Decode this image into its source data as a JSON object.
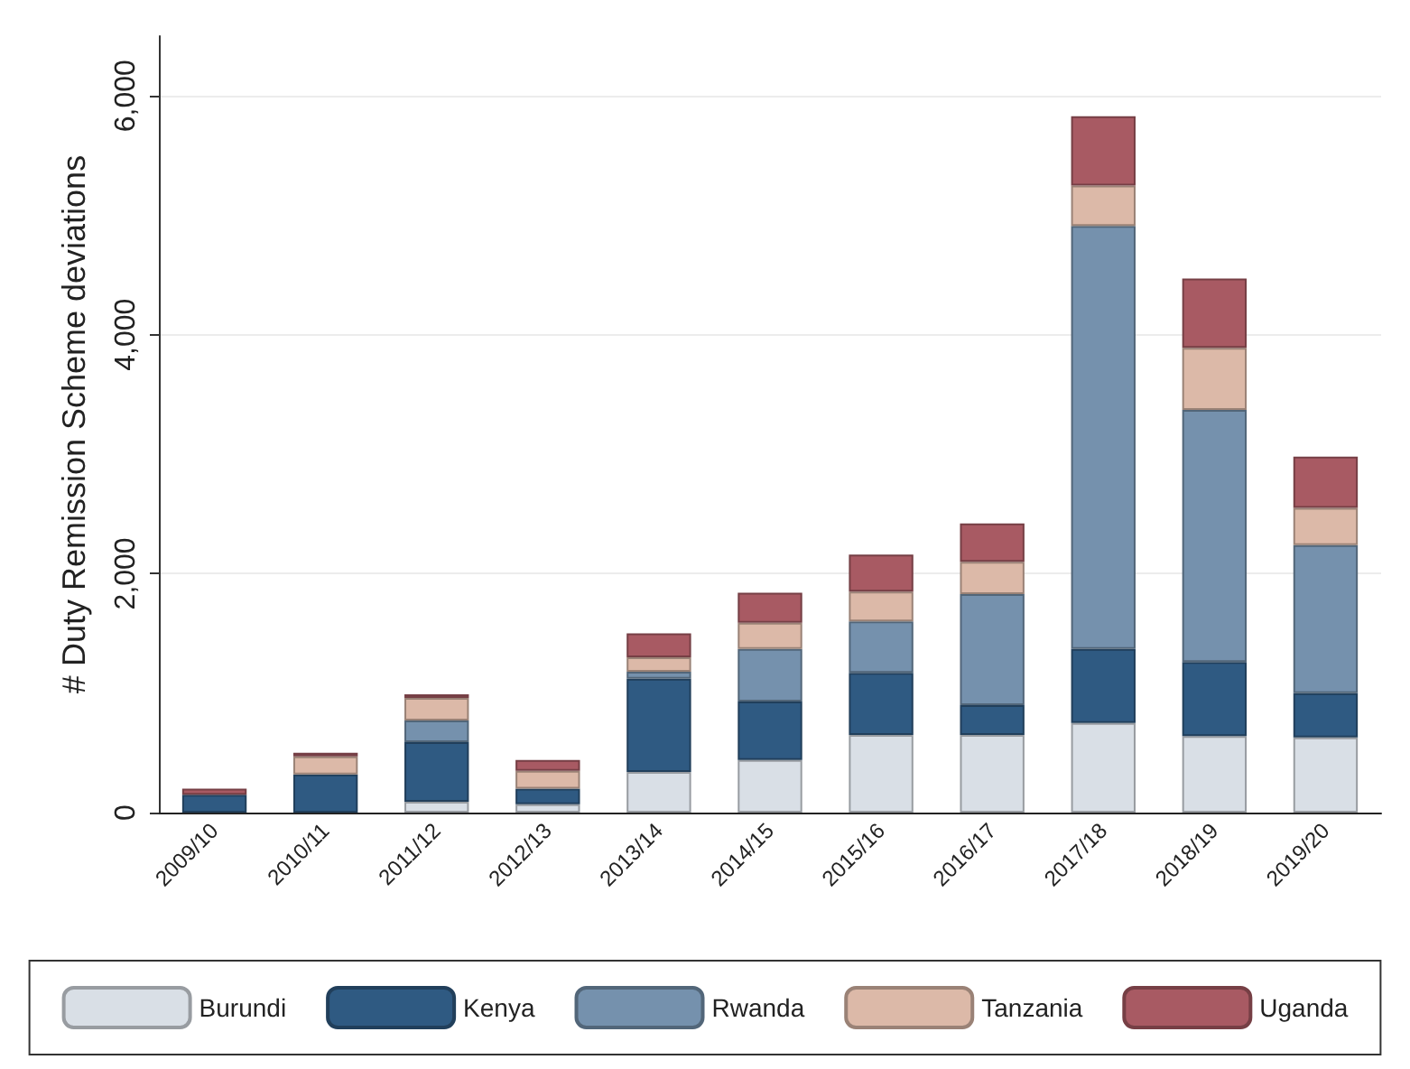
{
  "chart_data": {
    "type": "bar",
    "stacked": true,
    "ylabel": "# Duty Remission Scheme deviations",
    "categories": [
      "2009/10",
      "2010/11",
      "2011/12",
      "2012/13",
      "2013/14",
      "2014/15",
      "2015/16",
      "2016/17",
      "2017/18",
      "2018/19",
      "2019/20"
    ],
    "series": [
      {
        "name": "Burundi",
        "color": "#d9dfe6",
        "values": [
          0,
          0,
          90,
          70,
          340,
          440,
          650,
          650,
          750,
          640,
          630
        ]
      },
      {
        "name": "Kenya",
        "color": "#2f5a82",
        "values": [
          150,
          320,
          500,
          130,
          780,
          490,
          520,
          250,
          620,
          620,
          370
        ]
      },
      {
        "name": "Rwanda",
        "color": "#7591ad",
        "values": [
          0,
          0,
          180,
          0,
          60,
          440,
          430,
          930,
          3540,
          2110,
          1240
        ]
      },
      {
        "name": "Tanzania",
        "color": "#dcb9a8",
        "values": [
          0,
          150,
          190,
          150,
          120,
          220,
          250,
          270,
          340,
          520,
          310
        ]
      },
      {
        "name": "Uganda",
        "color": "#a85a63",
        "values": [
          50,
          30,
          30,
          90,
          200,
          250,
          310,
          320,
          580,
          580,
          430
        ]
      }
    ],
    "ylim": [
      0,
      6500
    ],
    "yticks": [
      0,
      {
        "value": 2000,
        "label": "2,000"
      },
      {
        "value": 4000,
        "label": "4,000"
      },
      {
        "value": 6000,
        "label": "6,000"
      }
    ],
    "grid": "y",
    "legend": "bottom"
  }
}
